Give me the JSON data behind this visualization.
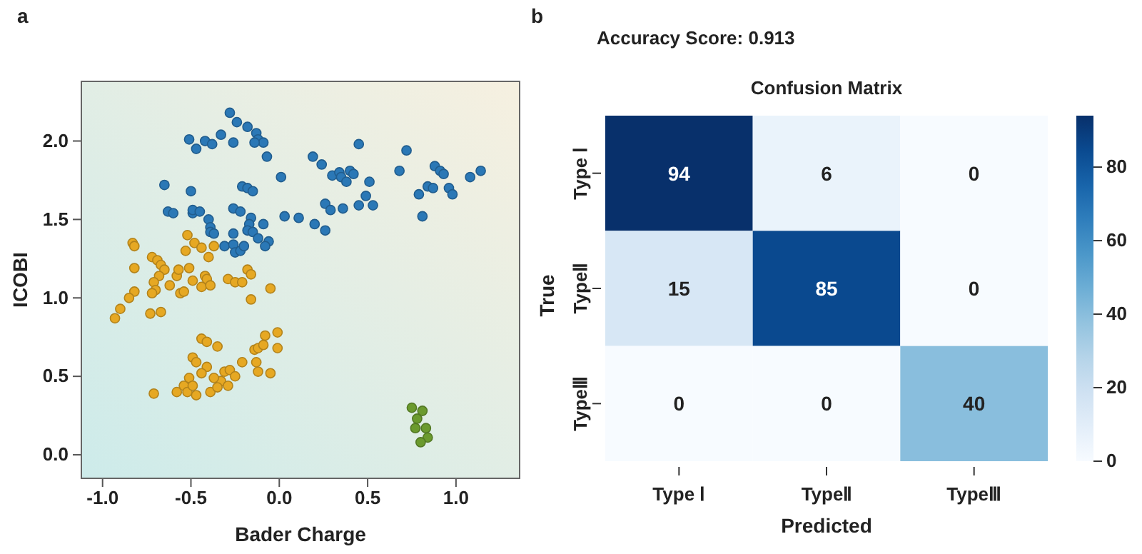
{
  "chart_data": [
    {
      "type": "scatter",
      "xlabel": "Bader Charge",
      "ylabel": "ICOBI",
      "annotations": [
        "a"
      ],
      "marker": "circle",
      "grid": false,
      "xlim": [
        -1.12,
        1.36
      ],
      "xticks": [
        {
          "value": -1,
          "label": "-1.0"
        },
        {
          "value": -0.5,
          "label": "-0.5"
        },
        {
          "value": 0,
          "label": "0.0"
        },
        0.5,
        {
          "value": 1,
          "label": "1.0"
        }
      ],
      "ylim": [
        -0.15,
        2.38
      ],
      "yticks": [
        {
          "value": 0,
          "label": "0.0"
        },
        0.5,
        {
          "value": 1,
          "label": "1.0"
        },
        1.5,
        {
          "value": 2,
          "label": "2.0"
        }
      ],
      "series": [
        {
          "color": "#2b78b6",
          "x": [
            -0.28,
            -0.24,
            -0.18,
            -0.13,
            -0.12,
            -0.09,
            -0.14,
            -0.51,
            -0.47,
            -0.42,
            -0.38,
            -0.33,
            -0.26,
            -0.07,
            0.01,
            0.19,
            0.24,
            0.45,
            0.72,
            0.3,
            0.34,
            0.35,
            0.38,
            0.4,
            0.42,
            0.51,
            0.68,
            0.88,
            0.91,
            0.93,
            1.08,
            1.14,
            -0.65,
            -0.5,
            -0.21,
            -0.18,
            -0.15,
            -0.63,
            -0.6,
            -0.49,
            -0.49,
            -0.45,
            -0.4,
            -0.39,
            -0.39,
            -0.37,
            -0.26,
            -0.22,
            -0.16,
            -0.17,
            -0.18,
            -0.15,
            -0.12,
            -0.09,
            -0.06,
            -0.08,
            -0.26,
            -0.31,
            -0.26,
            -0.25,
            -0.22,
            -0.2,
            0.03,
            0.11,
            0.2,
            0.26,
            0.26,
            0.29,
            0.36,
            0.45,
            0.49,
            0.53,
            0.79,
            0.81,
            0.84,
            0.87,
            0.96,
            0.98
          ],
          "values": [
            2.18,
            2.12,
            2.09,
            2.05,
            2.01,
            1.99,
            1.99,
            2.01,
            1.95,
            2.0,
            1.98,
            2.04,
            1.99,
            1.9,
            1.77,
            1.9,
            1.85,
            1.98,
            1.94,
            1.78,
            1.8,
            1.77,
            1.74,
            1.81,
            1.79,
            1.74,
            1.81,
            1.84,
            1.81,
            1.79,
            1.77,
            1.81,
            1.72,
            1.68,
            1.71,
            1.7,
            1.68,
            1.55,
            1.54,
            1.54,
            1.56,
            1.55,
            1.5,
            1.45,
            1.42,
            1.41,
            1.57,
            1.55,
            1.51,
            1.47,
            1.43,
            1.42,
            1.38,
            1.47,
            1.36,
            1.33,
            1.41,
            1.33,
            1.34,
            1.29,
            1.3,
            1.33,
            1.52,
            1.51,
            1.47,
            1.43,
            1.6,
            1.56,
            1.57,
            1.59,
            1.65,
            1.59,
            1.66,
            1.52,
            1.71,
            1.7,
            1.7,
            1.66
          ]
        },
        {
          "color": "#e6a823",
          "x": [
            -0.83,
            -0.82,
            -0.82,
            -0.82,
            -0.85,
            -0.9,
            -0.93,
            -0.73,
            -0.67,
            -0.72,
            -0.69,
            -0.67,
            -0.65,
            -0.68,
            -0.71,
            -0.7,
            -0.72,
            -0.62,
            -0.58,
            -0.57,
            -0.51,
            -0.49,
            -0.56,
            -0.54,
            -0.52,
            -0.53,
            -0.48,
            -0.44,
            -0.37,
            -0.4,
            -0.42,
            -0.41,
            -0.44,
            -0.39,
            -0.29,
            -0.25,
            -0.21,
            -0.18,
            -0.16,
            -0.16,
            -0.05,
            -0.44,
            -0.41,
            -0.35,
            -0.49,
            -0.47,
            -0.41,
            -0.44,
            -0.51,
            -0.54,
            -0.58,
            -0.52,
            -0.47,
            -0.39,
            -0.33,
            -0.37,
            -0.31,
            -0.28,
            -0.25,
            -0.21,
            -0.14,
            -0.12,
            -0.09,
            -0.08,
            -0.01,
            -0.01,
            -0.12,
            -0.05,
            -0.13,
            -0.71,
            -0.29,
            -0.35,
            -0.49
          ],
          "values": [
            1.35,
            1.33,
            1.19,
            1.04,
            1.0,
            0.93,
            0.87,
            0.9,
            0.91,
            1.26,
            1.24,
            1.21,
            1.18,
            1.14,
            1.1,
            1.05,
            1.03,
            1.08,
            1.14,
            1.18,
            1.19,
            1.11,
            1.03,
            1.04,
            1.4,
            1.3,
            1.35,
            1.32,
            1.33,
            1.26,
            1.14,
            1.12,
            1.07,
            1.08,
            1.12,
            1.1,
            1.1,
            1.18,
            1.15,
            0.99,
            1.06,
            0.74,
            0.72,
            0.69,
            0.62,
            0.59,
            0.56,
            0.52,
            0.49,
            0.44,
            0.4,
            0.4,
            0.38,
            0.4,
            0.47,
            0.49,
            0.53,
            0.54,
            0.5,
            0.59,
            0.67,
            0.68,
            0.7,
            0.76,
            0.78,
            0.68,
            0.53,
            0.52,
            0.59,
            0.39,
            0.44,
            0.43,
            0.44
          ]
        },
        {
          "color": "#6b9a2e",
          "x": [
            0.75,
            0.77,
            0.84,
            0.8,
            0.78,
            0.81,
            0.83
          ],
          "values": [
            0.3,
            0.17,
            0.11,
            0.08,
            0.23,
            0.28,
            0.17
          ]
        }
      ]
    },
    {
      "type": "heatmap",
      "title": "Confusion Matrix",
      "subtitle": "Accuracy Score: 0.913",
      "xlabel": "Predicted",
      "ylabel": "True",
      "annotations": [
        "b"
      ],
      "categories": [
        "Type Ⅰ",
        "TypeⅡ",
        "TypeⅢ"
      ],
      "y_categories": [
        "Type Ⅰ",
        "TypeⅡ",
        "TypeⅢ"
      ],
      "cells": [
        [
          94,
          6,
          0
        ],
        [
          15,
          85,
          0
        ],
        [
          0,
          0,
          40
        ]
      ],
      "clim": [
        0,
        94
      ],
      "cticks": [
        0,
        20,
        40,
        60,
        80
      ],
      "data_labels": true
    }
  ]
}
